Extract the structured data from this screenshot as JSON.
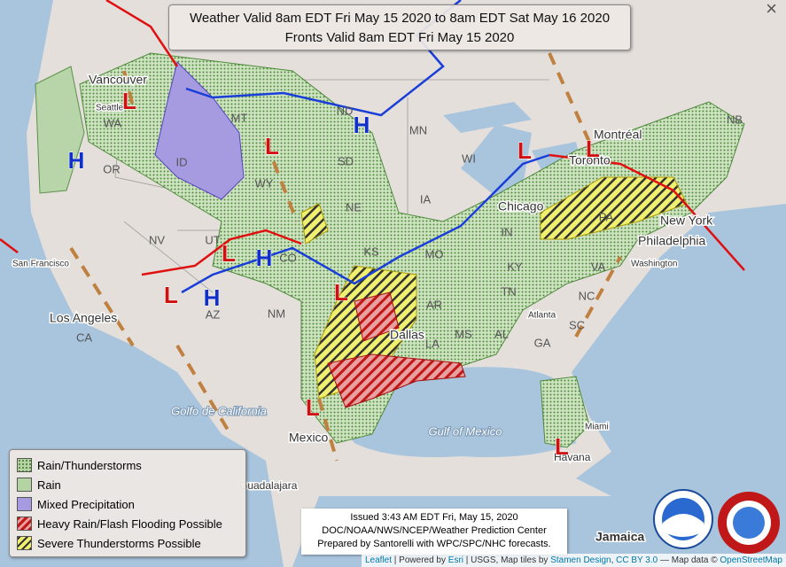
{
  "header": {
    "lines": [
      "Weather Valid 8am EDT Fri May 15 2020 to 8am EDT Sat May 16 2020",
      "Fronts Valid 8am EDT Fri May 15 2020"
    ],
    "close": "×"
  },
  "legend": {
    "items": [
      "Rain/Thunderstorms",
      "Rain",
      "Mixed Precipitation",
      "Heavy Rain/Flash Flooding Possible",
      "Severe Thunderstorms Possible"
    ]
  },
  "issued": {
    "lines": [
      "Issued 3:43 AM EDT Fri, May 15, 2020",
      "DOC/NOAA/NWS/NCEP/Weather Prediction Center",
      "Prepared by Santorelli with WPC/SPC/NHC forecasts."
    ]
  },
  "attribution": [
    "Leaflet",
    " | Powered by ",
    "Esri",
    " | USGS, Map tiles by ",
    "Stamen Design",
    ", ",
    "CC BY 3.0",
    " — Map data © ",
    "OpenStreetMap"
  ],
  "map": {
    "states": [
      "WA",
      "OR",
      "ID",
      "MT",
      "WY",
      "NV",
      "UT",
      "CO",
      "AZ",
      "NM",
      "ND",
      "SD",
      "NE",
      "KS",
      "MN",
      "IA",
      "MO",
      "WI",
      "IN",
      "KY",
      "TN",
      "AR",
      "LA",
      "MS",
      "AL",
      "GA",
      "SC",
      "NC",
      "VA",
      "PA",
      "NB",
      "CA"
    ],
    "cities": [
      "Vancouver",
      "Seattle",
      "San Francisco",
      "Los Angeles",
      "Dallas",
      "Atlanta",
      "Chicago",
      "Toronto",
      "Montréal",
      "New York",
      "Philadelphia",
      "Washington",
      "Miami",
      "Havana",
      "Mexico",
      "Guadalajara",
      "Jamaica"
    ],
    "waters": [
      "Golfo de California",
      "Gulf of Mexico"
    ],
    "pressure": {
      "high": "H",
      "low": "L"
    }
  }
}
